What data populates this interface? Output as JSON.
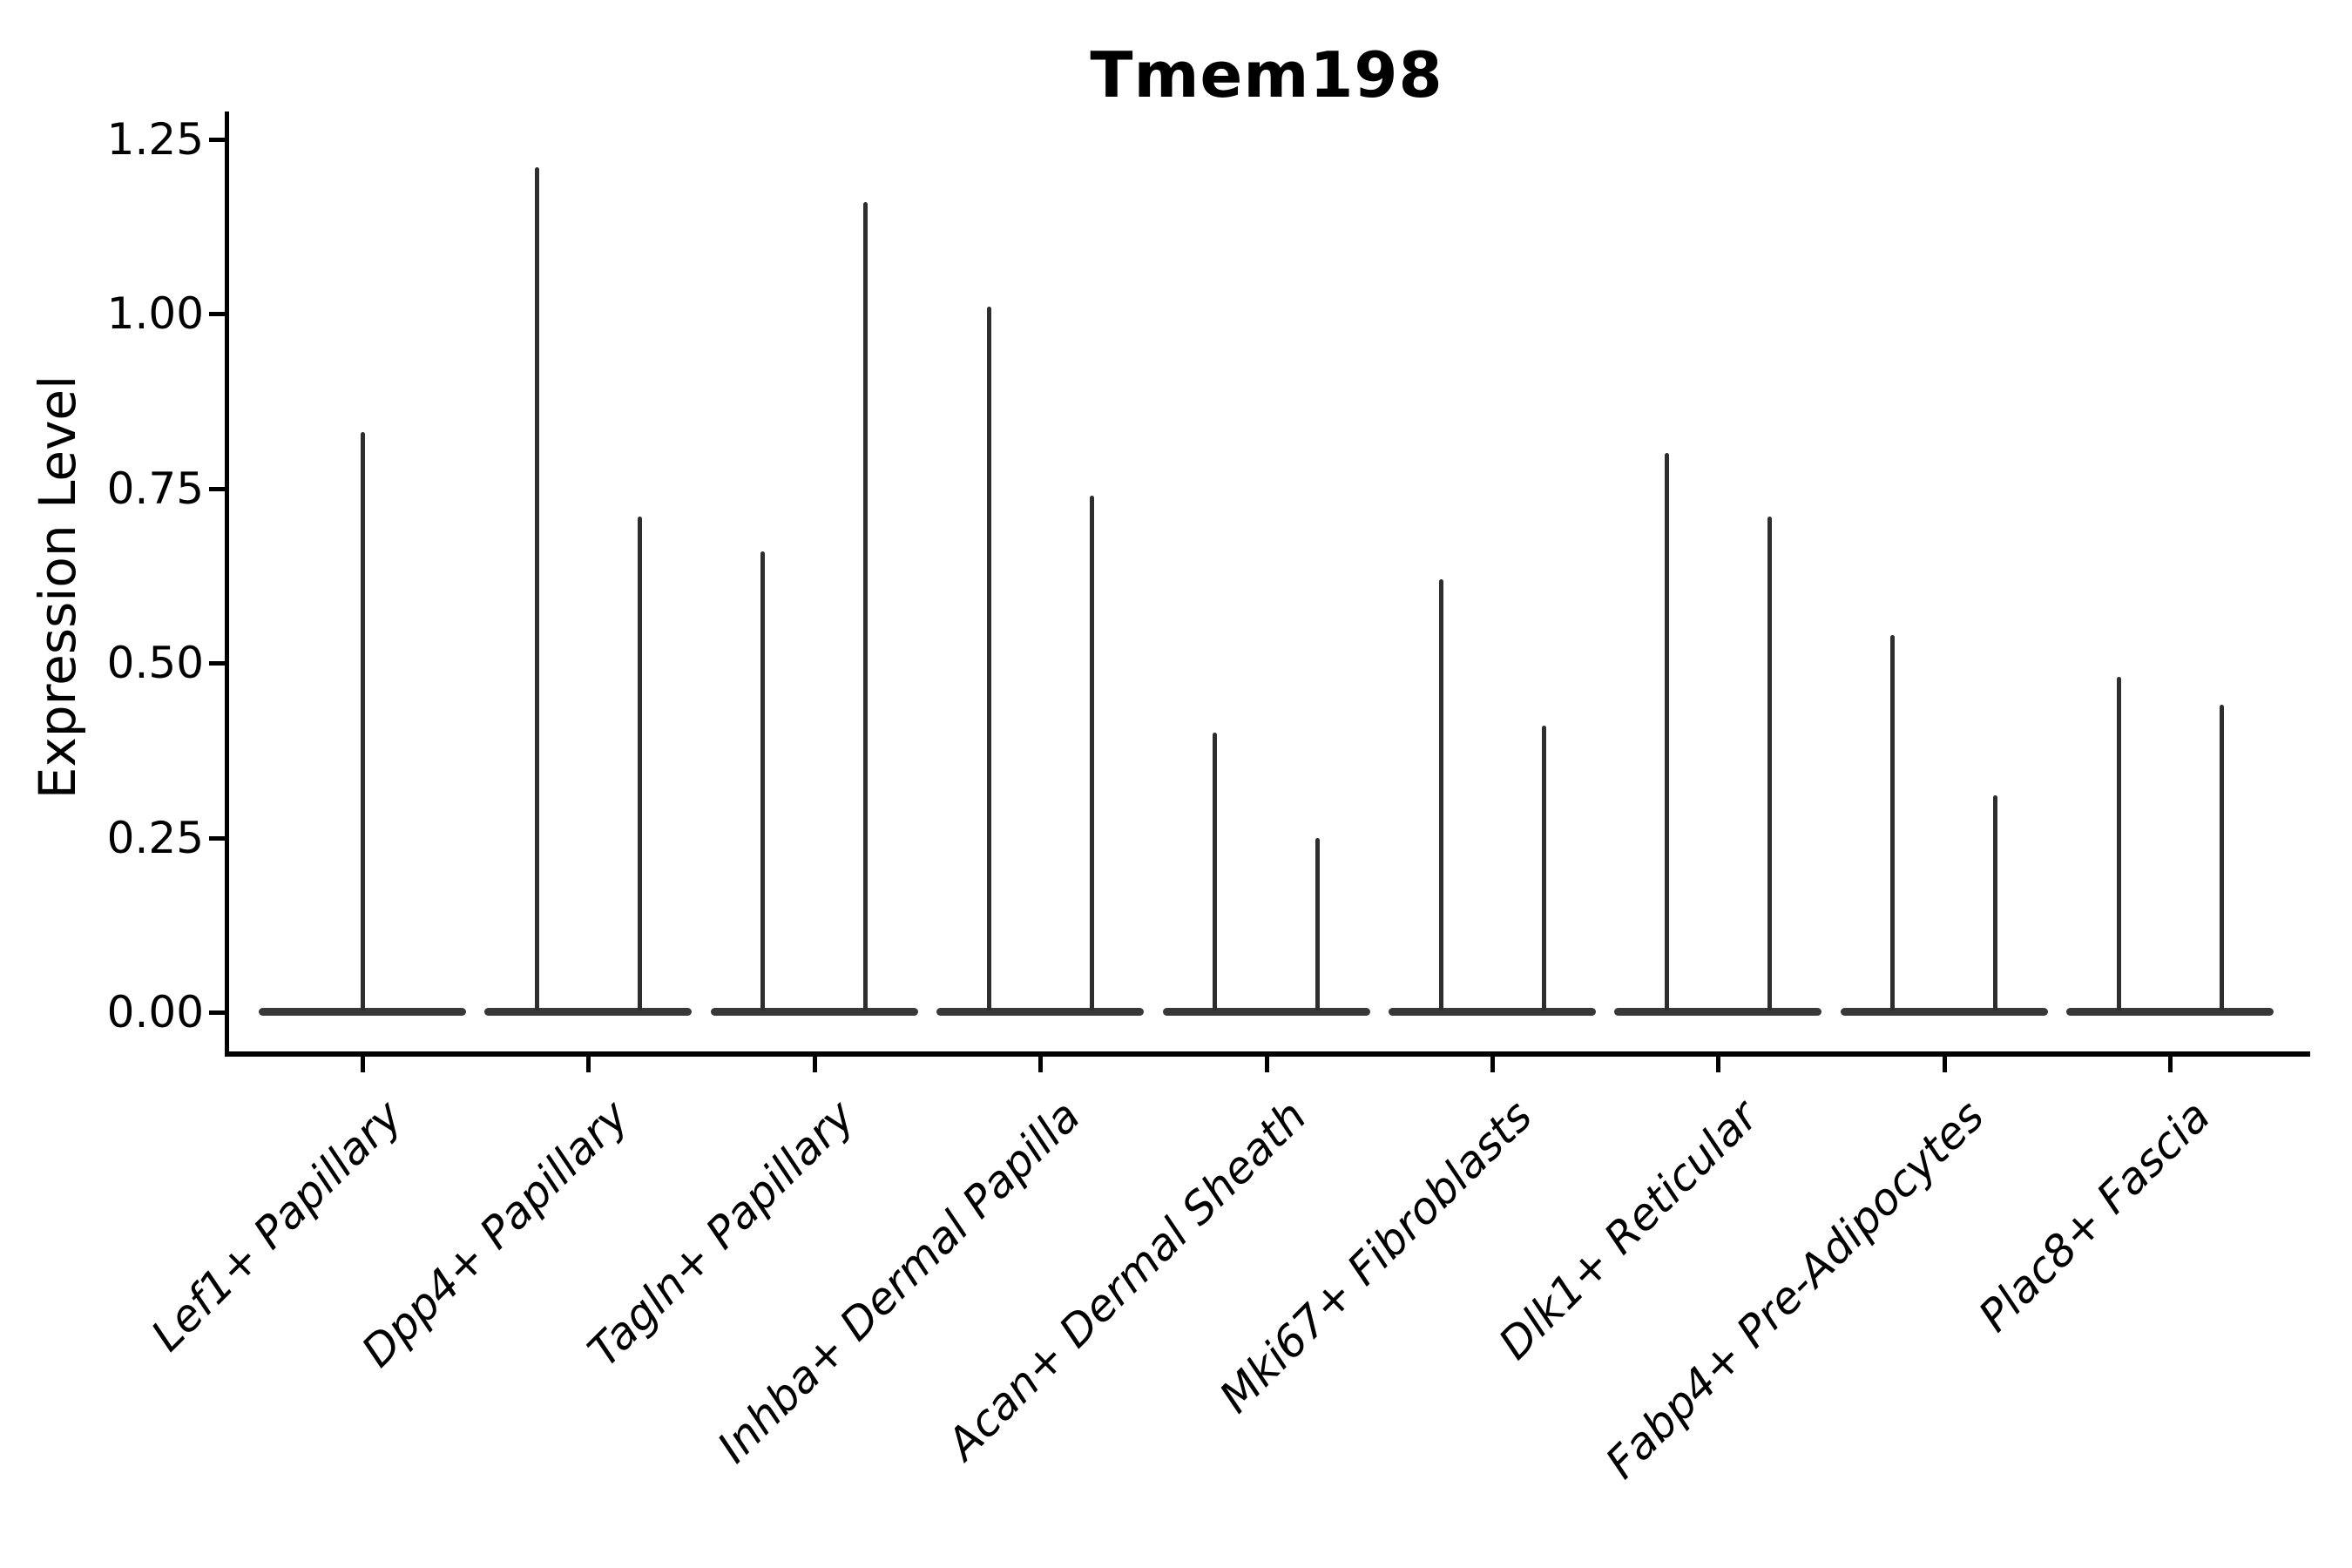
{
  "title": "Tmem198",
  "chart_data": {
    "type": "violin",
    "title": "Tmem198",
    "xlabel": "",
    "ylabel": "Expression Level",
    "ylim": [
      0,
      1.32
    ],
    "yticks": [
      0,
      0.25,
      0.5,
      0.75,
      1.0,
      1.25
    ],
    "ytick_labels": [
      "0.00",
      "0.25",
      "0.50",
      "0.75",
      "1.00",
      "1.25"
    ],
    "grid": false,
    "legend": null,
    "categories": [
      "Lef1+ Papillary",
      "Dpp4+ Papillary",
      "Tagln+ Papillary",
      "Inhba+ Dermal Papilla",
      "Acan+ Dermal Sheath",
      "Mki67+ Fibroblasts",
      "Dlk1+ Reticular",
      "Fabp4+ Pre-Adipocytes",
      "Plac8+ Fascia"
    ],
    "violins": [
      {
        "category": "Lef1+ Papillary",
        "max_values": [
          0.83
        ]
      },
      {
        "category": "Dpp4+ Papillary",
        "max_values": [
          1.21,
          0.71
        ]
      },
      {
        "category": "Tagln+ Papillary",
        "max_values": [
          0.66,
          1.16
        ]
      },
      {
        "category": "Inhba+ Dermal Papilla",
        "max_values": [
          1.01,
          0.74
        ]
      },
      {
        "category": "Acan+ Dermal Sheath",
        "max_values": [
          0.4,
          0.25
        ]
      },
      {
        "category": "Mki67+ Fibroblasts",
        "max_values": [
          0.62,
          0.41
        ]
      },
      {
        "category": "Dlk1+ Reticular",
        "max_values": [
          0.8,
          0.71
        ]
      },
      {
        "category": "Fabp4+ Pre-Adipocytes",
        "max_values": [
          0.54,
          0.31
        ]
      },
      {
        "category": "Plac8+ Fascia",
        "max_values": [
          0.48,
          0.44
        ]
      }
    ],
    "violin_shape_note": "each violin is flattened at 0 expression with a thin density spike rising to its max value",
    "colors": {
      "violin_line": "#2e2e2e",
      "violin_base": "#383838",
      "axis": "#000000",
      "text": "#000000",
      "background": "#ffffff"
    }
  }
}
